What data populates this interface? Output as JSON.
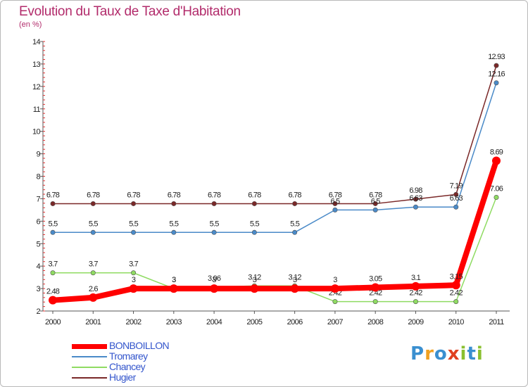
{
  "chart_data": {
    "type": "line",
    "title": "Evolution du Taux de Taxe d'Habitation",
    "subtitle": "(en %)",
    "x": [
      2000,
      2001,
      2002,
      2003,
      2004,
      2005,
      2006,
      2007,
      2008,
      2009,
      2010,
      2011
    ],
    "ylim": [
      2,
      14
    ],
    "yticks": [
      2,
      3,
      4,
      5,
      6,
      7,
      8,
      9,
      10,
      11,
      12,
      13,
      14
    ],
    "grid": false,
    "legend_position": "bottom-left",
    "series": [
      {
        "name": "Hugier",
        "color": "#7a2828",
        "values": [
          6.78,
          6.78,
          6.78,
          6.78,
          6.78,
          6.78,
          6.78,
          6.78,
          6.78,
          6.98,
          7.19,
          12.93
        ],
        "labels": [
          "6.78",
          "6.78",
          "6.78",
          "6.78",
          "6.78",
          "6.78",
          "6.78",
          "6.78",
          "6.78",
          "6.98",
          "7.19",
          "12.93"
        ]
      },
      {
        "name": "Tromarey",
        "color": "#4a8ac8",
        "values": [
          5.5,
          5.5,
          5.5,
          5.5,
          5.5,
          5.5,
          5.5,
          6.5,
          6.5,
          6.63,
          6.63,
          12.16
        ],
        "labels": [
          "5.5",
          "5.5",
          "5.5",
          "5.5",
          "5.5",
          "5.5",
          "5.5",
          "6.5",
          "6.5",
          "6.63",
          "6.63",
          "12.16"
        ]
      },
      {
        "name": "Chancey",
        "color": "#8fdb62",
        "values": [
          3.7,
          3.7,
          3.7,
          3,
          3.06,
          3.12,
          3.12,
          2.42,
          2.42,
          2.42,
          2.42,
          7.06
        ],
        "labels": [
          "3.7",
          "3.7",
          "3.7",
          "3",
          "3.06",
          "3.12",
          "3.12",
          "2.42",
          "2.42",
          "2.42",
          "2.42",
          "7.06"
        ]
      },
      {
        "name": "BONBOILLON",
        "color": "#ff0000",
        "values": [
          2.48,
          2.6,
          3,
          3,
          3,
          3,
          3,
          3,
          3.05,
          3.1,
          3.15,
          8.69
        ],
        "labels": [
          "2.48",
          "2.6",
          "3",
          "3",
          "3",
          "3",
          "3",
          "3",
          "3.05",
          "3.1",
          "3.15",
          "8.69"
        ]
      }
    ]
  },
  "legend": [
    {
      "label": "BONBOILLON",
      "color": "#ff0000"
    },
    {
      "label": "Tromarey",
      "color": "#4a8ac8"
    },
    {
      "label": "Chancey",
      "color": "#8fdb62"
    },
    {
      "label": "Hugier",
      "color": "#7a2828"
    }
  ],
  "logo": {
    "text": "Proxiti",
    "colors": [
      "#3a8fd0",
      "#f0a020",
      "#3a8fd0",
      "#e04020",
      "#8ac030",
      "#3a8fd0",
      "#8ac030"
    ]
  }
}
